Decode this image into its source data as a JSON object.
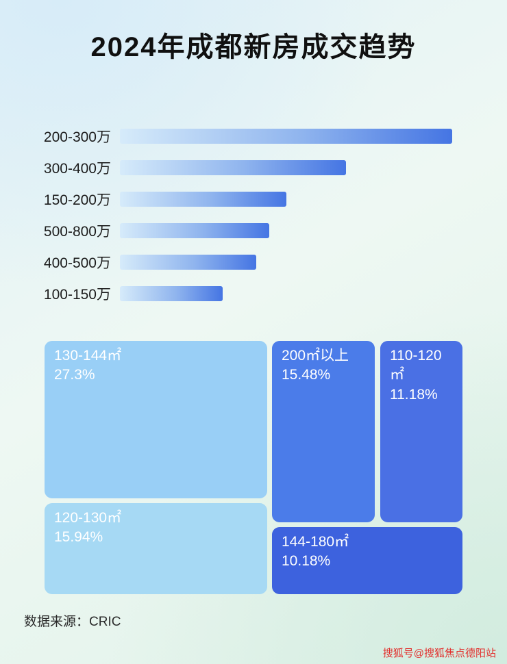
{
  "title": "2024年成都新房成交趋势",
  "source": "数据来源：CRIC",
  "watermark": "搜狐号@搜狐焦点德阳站",
  "colors": {
    "title": "#101010",
    "label": "#1c1c1c",
    "source": "#2a2a2a",
    "watermark": "#e2312e",
    "bar_start": "#d6ebfa",
    "bar_end": "#4575e3"
  },
  "chart_data": [
    {
      "type": "bar",
      "title": "2024年成都新房成交趋势",
      "orientation": "horizontal",
      "categories": [
        "200-300万",
        "300-400万",
        "150-200万",
        "500-800万",
        "400-500万",
        "100-150万"
      ],
      "values": [
        100,
        68,
        50,
        45,
        41,
        31
      ],
      "values_note": "relative bar lengths in percent of longest bar; no numeric axis shown in image",
      "xlabel": "",
      "ylabel": "",
      "grid": false,
      "legend": false
    },
    {
      "type": "treemap",
      "items": [
        {
          "label": "130-144㎡",
          "value": "27.3%",
          "color": "#99cff6"
        },
        {
          "label": "120-130㎡",
          "value": "15.94%",
          "color": "#a6d9f4"
        },
        {
          "label": "200㎡以上",
          "value": "15.48%",
          "color": "#4b7ce9"
        },
        {
          "label": "110-120㎡",
          "value": "11.18%",
          "color": "#4a70e4"
        },
        {
          "label": "144-180㎡",
          "value": "10.18%",
          "color": "#3d62de"
        }
      ]
    }
  ]
}
